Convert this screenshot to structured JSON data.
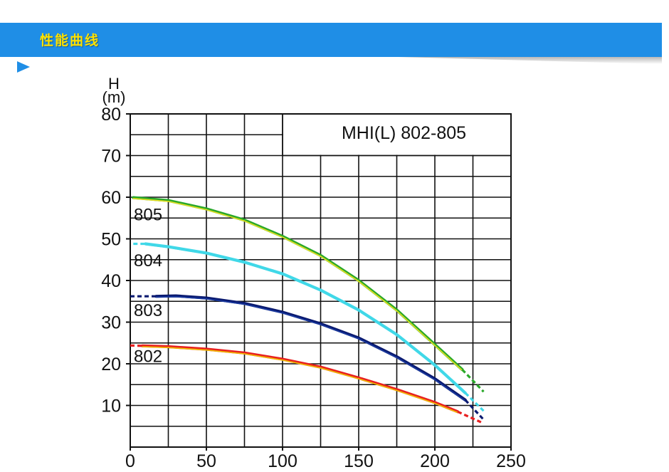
{
  "header": {
    "title": "性能曲线",
    "accent_color": "#1f8ee6",
    "title_color": "#ffe100",
    "arrow_icon": "triangle-pointer-icon"
  },
  "chart_data": {
    "type": "line",
    "title": "MHI(L) 802-805",
    "ylabel_symbol": "H",
    "ylabel_unit": "(m)",
    "xlim": [
      0,
      250
    ],
    "ylim": [
      0,
      80
    ],
    "x_ticks": [
      "0",
      "50",
      "100",
      "150",
      "200",
      "250"
    ],
    "y_ticks": [
      "10",
      "20",
      "30",
      "40",
      "50",
      "60",
      "70",
      "80"
    ],
    "grid": true,
    "series": [
      {
        "name": "805",
        "colors": [
          "#2aa82a",
          "#e8e020"
        ],
        "solid": [
          [
            2,
            59.9
          ],
          [
            25,
            59.2
          ],
          [
            50,
            57.2
          ],
          [
            75,
            54.5
          ],
          [
            100,
            50.6
          ],
          [
            125,
            46.0
          ],
          [
            150,
            40.0
          ],
          [
            175,
            32.9
          ],
          [
            200,
            24.6
          ],
          [
            218,
            18.6
          ]
        ],
        "dashed": [
          [
            218,
            18.6
          ],
          [
            232,
            13.3
          ]
        ]
      },
      {
        "name": "804",
        "colors": [
          "#40d8e8",
          "#40d8e8"
        ],
        "solid": [
          [
            10,
            48.8
          ],
          [
            25,
            48.1
          ],
          [
            50,
            46.6
          ],
          [
            75,
            44.4
          ],
          [
            100,
            41.6
          ],
          [
            125,
            37.7
          ],
          [
            150,
            32.9
          ],
          [
            175,
            27.0
          ],
          [
            200,
            19.7
          ],
          [
            220,
            13.0
          ]
        ],
        "dashed": [
          [
            2,
            48.8
          ],
          [
            10,
            48.8
          ],
          [
            220,
            13.0
          ],
          [
            232,
            8.7
          ]
        ]
      },
      {
        "name": "803",
        "colors": [
          "#0a1a70",
          "#1a3aa0"
        ],
        "solid": [
          [
            17,
            36.2
          ],
          [
            30,
            36.3
          ],
          [
            50,
            35.8
          ],
          [
            75,
            34.5
          ],
          [
            100,
            32.4
          ],
          [
            125,
            29.6
          ],
          [
            150,
            26.2
          ],
          [
            175,
            21.7
          ],
          [
            200,
            16.4
          ],
          [
            220,
            11.3
          ]
        ],
        "dashed": [
          [
            0,
            36.2
          ],
          [
            17,
            36.2
          ],
          [
            220,
            11.3
          ],
          [
            232,
            6.6
          ]
        ]
      },
      {
        "name": "802",
        "colors": [
          "#e82020",
          "#f0c000"
        ],
        "solid": [
          [
            8,
            24.3
          ],
          [
            25,
            24.1
          ],
          [
            50,
            23.5
          ],
          [
            75,
            22.6
          ],
          [
            100,
            21.1
          ],
          [
            125,
            19.2
          ],
          [
            150,
            16.6
          ],
          [
            175,
            13.8
          ],
          [
            200,
            10.7
          ],
          [
            215,
            8.5
          ]
        ],
        "dashed": [
          [
            0,
            24.4
          ],
          [
            8,
            24.3
          ],
          [
            215,
            8.5
          ],
          [
            232,
            5.7
          ]
        ]
      }
    ]
  }
}
